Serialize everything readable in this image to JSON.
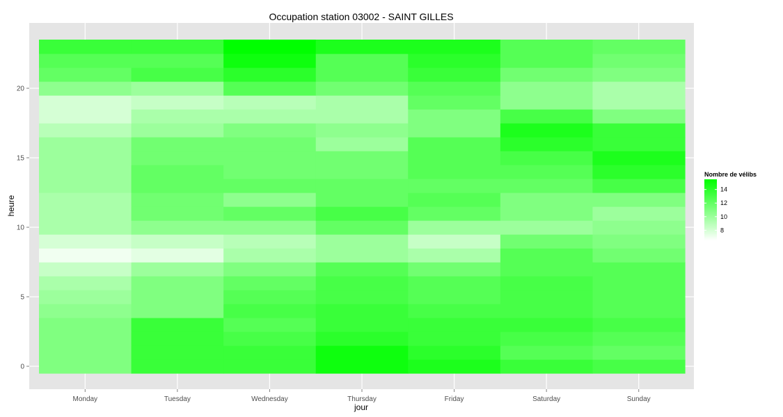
{
  "chart_data": {
    "type": "heatmap",
    "title": "Occupation station 03002 - SAINT GILLES",
    "xlabel": "jour",
    "ylabel": "heure",
    "categories": [
      "Monday",
      "Tuesday",
      "Wednesday",
      "Thursday",
      "Friday",
      "Saturday",
      "Sunday"
    ],
    "y_hours": [
      0,
      1,
      2,
      3,
      4,
      5,
      6,
      7,
      8,
      9,
      10,
      11,
      12,
      13,
      14,
      15,
      16,
      17,
      18,
      19,
      20,
      21,
      22,
      23
    ],
    "y_ticks": [
      0,
      5,
      10,
      15,
      20
    ],
    "ylim": [
      -0.5,
      23.5
    ],
    "values": [
      [
        11.0,
        13.5,
        13.5,
        15.0,
        14.5,
        13.5,
        13.0
      ],
      [
        11.0,
        13.5,
        13.5,
        15.0,
        14.0,
        12.5,
        12.0
      ],
      [
        11.0,
        13.5,
        13.0,
        14.0,
        13.5,
        13.0,
        12.5
      ],
      [
        11.0,
        13.5,
        12.5,
        13.5,
        13.5,
        13.5,
        13.0
      ],
      [
        10.5,
        11.0,
        13.0,
        13.5,
        13.0,
        13.0,
        12.5
      ],
      [
        10.0,
        11.0,
        12.5,
        13.0,
        12.5,
        13.0,
        12.5
      ],
      [
        9.5,
        11.0,
        12.0,
        13.0,
        12.5,
        13.0,
        12.5
      ],
      [
        8.5,
        10.0,
        11.0,
        12.5,
        11.5,
        12.5,
        12.5
      ],
      [
        7.0,
        7.5,
        9.5,
        10.0,
        9.5,
        12.5,
        11.5
      ],
      [
        8.0,
        8.5,
        9.0,
        10.0,
        8.5,
        11.5,
        11.0
      ],
      [
        9.5,
        10.5,
        10.5,
        12.0,
        10.0,
        10.0,
        10.5
      ],
      [
        9.5,
        11.5,
        12.0,
        13.0,
        12.0,
        11.0,
        10.0
      ],
      [
        9.5,
        11.5,
        10.5,
        12.0,
        12.5,
        11.0,
        11.0
      ],
      [
        10.0,
        12.0,
        12.0,
        12.0,
        12.0,
        12.0,
        13.0
      ],
      [
        10.0,
        12.0,
        11.5,
        11.5,
        12.5,
        12.5,
        14.0
      ],
      [
        10.0,
        11.5,
        11.5,
        11.5,
        12.5,
        13.0,
        14.5
      ],
      [
        10.0,
        11.5,
        11.5,
        10.0,
        12.5,
        14.0,
        13.5
      ],
      [
        9.0,
        10.0,
        11.0,
        10.5,
        11.0,
        14.5,
        13.5
      ],
      [
        8.0,
        9.5,
        9.5,
        9.5,
        11.0,
        13.0,
        11.0
      ],
      [
        8.0,
        8.5,
        9.0,
        9.5,
        12.0,
        10.5,
        9.5
      ],
      [
        10.5,
        10.0,
        12.5,
        11.5,
        12.5,
        10.5,
        9.5
      ],
      [
        12.0,
        13.0,
        14.0,
        12.5,
        13.5,
        11.5,
        11.0
      ],
      [
        12.5,
        12.5,
        15.0,
        12.5,
        14.0,
        12.5,
        11.5
      ],
      [
        13.5,
        13.5,
        15.5,
        14.5,
        14.5,
        12.5,
        12.0
      ]
    ],
    "legend": {
      "title": "Nombre de vélibs",
      "ticks": [
        8,
        10,
        12,
        14
      ],
      "low_color": "#ffffff",
      "high_color": "#00ff00",
      "range": [
        6.5,
        15.5
      ]
    },
    "panel_color": "#e5e5e5",
    "grid_color": "#ffffff",
    "grid": true,
    "legend_position": "right"
  }
}
